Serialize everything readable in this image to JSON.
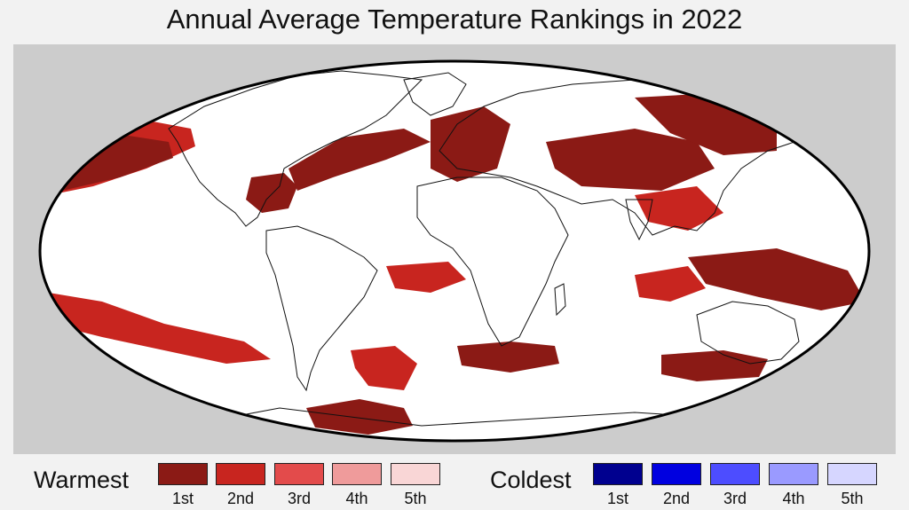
{
  "title": "Annual Average Temperature Rankings in 2022",
  "colors": {
    "frame_bg": "#cccccc",
    "ocean": "#ffffff",
    "land_line": "#111111",
    "warm": [
      "#8b1a15",
      "#c8251f",
      "#e34b4b",
      "#ef9b9b",
      "#f9d6d6"
    ],
    "cold": [
      "#00008f",
      "#0000e0",
      "#4d4dff",
      "#9a9aff",
      "#d6d6ff"
    ]
  },
  "map": {
    "projection": "Mollweide",
    "regions": [
      {
        "name": "north-pacific-warm-band",
        "rank": 1
      },
      {
        "name": "north-pacific-outer-band",
        "rank": 2
      },
      {
        "name": "gulf-of-mexico-caribbean",
        "rank": 1
      },
      {
        "name": "north-atlantic-band",
        "rank": 1
      },
      {
        "name": "europe-western",
        "rank": 1
      },
      {
        "name": "central-asia",
        "rank": 1
      },
      {
        "name": "east-asia-north-pacific",
        "rank": 1
      },
      {
        "name": "china-india",
        "rank": 2
      },
      {
        "name": "maritime-continent",
        "rank": 1
      },
      {
        "name": "indian-ocean-east",
        "rank": 2
      },
      {
        "name": "south-pacific-band",
        "rank": 2
      },
      {
        "name": "south-atlantic-band",
        "rank": 2
      },
      {
        "name": "southern-ocean-africa",
        "rank": 1
      },
      {
        "name": "southern-ocean-australia",
        "rank": 1
      },
      {
        "name": "antarctic-peninsula",
        "rank": 1
      },
      {
        "name": "southeast-pacific-south",
        "rank": 2
      }
    ]
  },
  "legend": {
    "warmest_label": "Warmest",
    "coldest_label": "Coldest",
    "ranks": [
      "1st",
      "2nd",
      "3rd",
      "4th",
      "5th"
    ]
  }
}
